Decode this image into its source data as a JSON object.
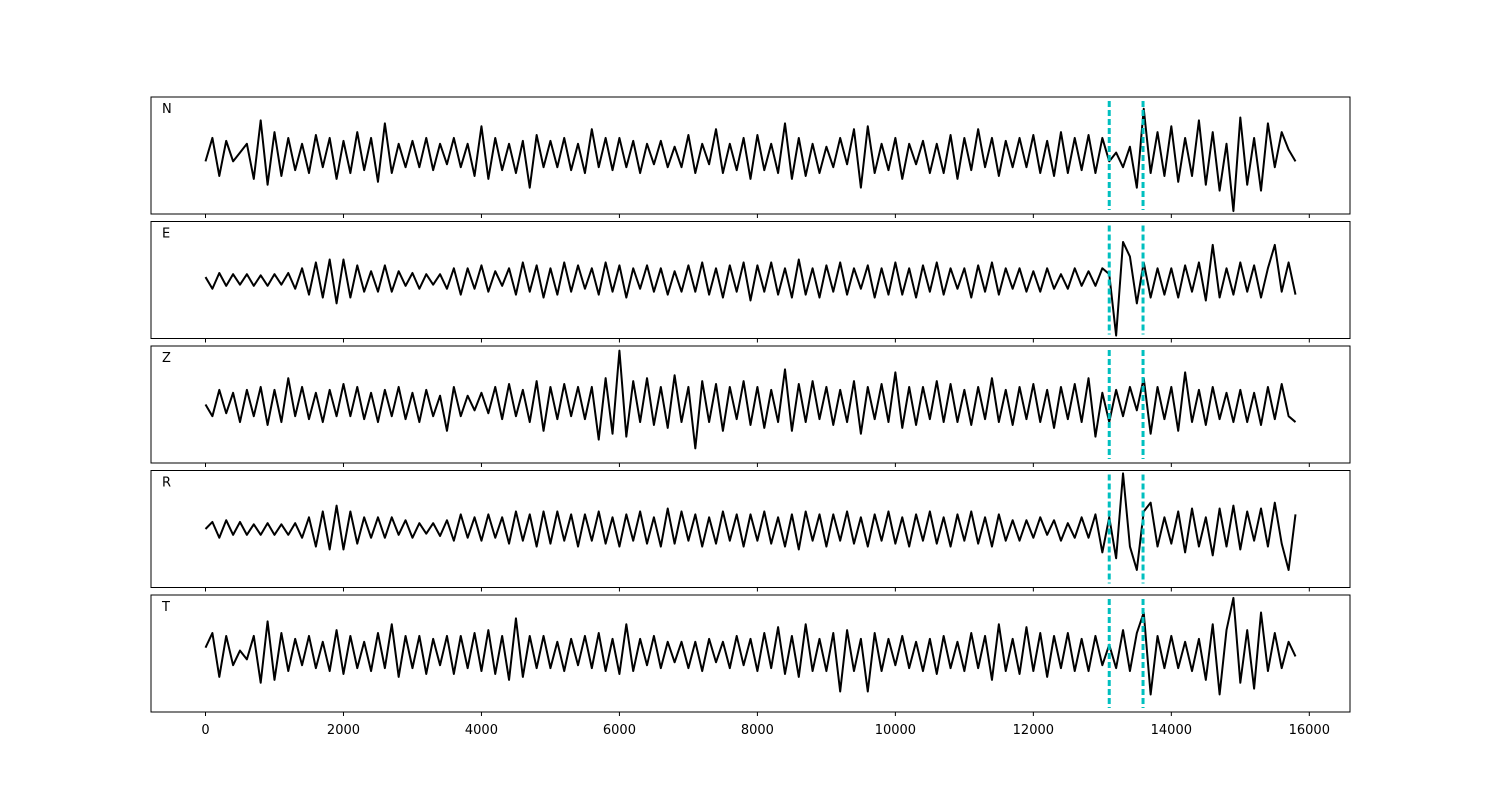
{
  "chart_data": {
    "type": "line",
    "subplots": true,
    "color": "#000000",
    "xlim": [
      -790,
      16590
    ],
    "xticks": [
      0,
      2000,
      4000,
      6000,
      8000,
      10000,
      12000,
      14000,
      16000
    ],
    "ylim": [
      -1,
      1
    ],
    "vlines": [
      13100,
      13590
    ],
    "vline_color": "#00bfbf",
    "x": [
      0,
      100,
      200,
      300,
      400,
      500,
      600,
      700,
      800,
      900,
      1000,
      1100,
      1200,
      1300,
      1400,
      1500,
      1600,
      1700,
      1800,
      1900,
      2000,
      2100,
      2200,
      2300,
      2400,
      2500,
      2600,
      2700,
      2800,
      2900,
      3000,
      3100,
      3200,
      3300,
      3400,
      3500,
      3600,
      3700,
      3800,
      3900,
      4000,
      4100,
      4200,
      4300,
      4400,
      4500,
      4600,
      4700,
      4800,
      4900,
      5000,
      5100,
      5200,
      5300,
      5400,
      5500,
      5600,
      5700,
      5800,
      5900,
      6000,
      6100,
      6200,
      6300,
      6400,
      6500,
      6600,
      6700,
      6800,
      6900,
      7000,
      7100,
      7200,
      7300,
      7400,
      7500,
      7600,
      7700,
      7800,
      7900,
      8000,
      8100,
      8200,
      8300,
      8400,
      8500,
      8600,
      8700,
      8800,
      8900,
      9000,
      9100,
      9200,
      9300,
      9400,
      9500,
      9600,
      9700,
      9800,
      9900,
      10000,
      10100,
      10200,
      10300,
      10400,
      10500,
      10600,
      10700,
      10800,
      10900,
      11000,
      11100,
      11200,
      11300,
      11400,
      11500,
      11600,
      11700,
      11800,
      11900,
      12000,
      12100,
      12200,
      12300,
      12400,
      12500,
      12600,
      12700,
      12800,
      12900,
      13000,
      13100,
      13200,
      13300,
      13400,
      13500,
      13600,
      13700,
      13800,
      13900,
      14000,
      14100,
      14200,
      14300,
      14400,
      14500,
      14600,
      14700,
      14800,
      14900,
      15000,
      15100,
      15200,
      15300,
      15400,
      15500,
      15600,
      15700,
      15800
    ],
    "series": [
      {
        "name": "N",
        "values": [
          -0.1,
          0.3,
          -0.35,
          0.25,
          -0.1,
          0.05,
          0.2,
          -0.4,
          0.6,
          -0.5,
          0.4,
          -0.35,
          0.3,
          -0.25,
          0.2,
          -0.3,
          0.35,
          -0.2,
          0.3,
          -0.4,
          0.25,
          -0.3,
          0.4,
          -0.25,
          0.3,
          -0.45,
          0.55,
          -0.3,
          0.2,
          -0.2,
          0.25,
          -0.2,
          0.3,
          -0.25,
          0.2,
          -0.15,
          0.3,
          -0.2,
          0.2,
          -0.35,
          0.5,
          -0.4,
          0.3,
          -0.25,
          0.2,
          -0.3,
          0.25,
          -0.55,
          0.35,
          -0.2,
          0.25,
          -0.2,
          0.3,
          -0.25,
          0.2,
          -0.3,
          0.45,
          -0.2,
          0.3,
          -0.25,
          0.3,
          -0.2,
          0.25,
          -0.3,
          0.2,
          -0.15,
          0.25,
          -0.2,
          0.15,
          -0.2,
          0.35,
          -0.3,
          0.2,
          -0.15,
          0.45,
          -0.3,
          0.2,
          -0.25,
          0.3,
          -0.4,
          0.35,
          -0.25,
          0.2,
          -0.3,
          0.55,
          -0.4,
          0.3,
          -0.35,
          0.2,
          -0.3,
          0.15,
          -0.2,
          0.3,
          -0.15,
          0.45,
          -0.55,
          0.5,
          -0.3,
          0.2,
          -0.25,
          0.3,
          -0.4,
          0.2,
          -0.15,
          0.25,
          -0.3,
          0.2,
          -0.3,
          0.35,
          -0.4,
          0.3,
          -0.25,
          0.45,
          -0.2,
          0.3,
          -0.35,
          0.25,
          -0.2,
          0.3,
          -0.2,
          0.35,
          -0.3,
          0.25,
          -0.35,
          0.4,
          -0.3,
          0.3,
          -0.25,
          0.35,
          -0.3,
          0.3,
          -0.1,
          0.05,
          -0.2,
          0.15,
          -0.55,
          0.8,
          -0.3,
          0.4,
          -0.35,
          0.5,
          -0.45,
          0.3,
          -0.35,
          0.6,
          -0.5,
          0.4,
          -0.6,
          0.2,
          -0.95,
          0.65,
          -0.5,
          0.3,
          -0.6,
          0.55,
          -0.2,
          0.4,
          0.1,
          -0.1
        ]
      },
      {
        "name": "E",
        "values": [
          0.05,
          -0.15,
          0.12,
          -0.1,
          0.1,
          -0.08,
          0.1,
          -0.1,
          0.08,
          -0.1,
          0.1,
          -0.08,
          0.12,
          -0.15,
          0.2,
          -0.25,
          0.3,
          -0.3,
          0.35,
          -0.4,
          0.35,
          -0.3,
          0.25,
          -0.2,
          0.15,
          -0.2,
          0.25,
          -0.2,
          0.15,
          -0.1,
          0.12,
          -0.15,
          0.1,
          -0.08,
          0.1,
          -0.15,
          0.2,
          -0.25,
          0.2,
          -0.15,
          0.25,
          -0.2,
          0.15,
          -0.1,
          0.2,
          -0.25,
          0.3,
          -0.2,
          0.25,
          -0.3,
          0.2,
          -0.25,
          0.3,
          -0.2,
          0.25,
          -0.15,
          0.2,
          -0.25,
          0.3,
          -0.2,
          0.25,
          -0.3,
          0.2,
          -0.15,
          0.25,
          -0.2,
          0.2,
          -0.25,
          0.15,
          -0.2,
          0.25,
          -0.2,
          0.3,
          -0.25,
          0.2,
          -0.3,
          0.25,
          -0.2,
          0.3,
          -0.35,
          0.25,
          -0.2,
          0.3,
          -0.25,
          0.2,
          -0.3,
          0.35,
          -0.25,
          0.2,
          -0.3,
          0.25,
          -0.2,
          0.3,
          -0.25,
          0.2,
          -0.15,
          0.25,
          -0.3,
          0.2,
          -0.25,
          0.3,
          -0.25,
          0.2,
          -0.3,
          0.25,
          -0.2,
          0.3,
          -0.25,
          0.2,
          -0.15,
          0.2,
          -0.3,
          0.25,
          -0.2,
          0.3,
          -0.25,
          0.2,
          -0.15,
          0.2,
          -0.2,
          0.15,
          -0.2,
          0.2,
          -0.15,
          0.1,
          -0.15,
          0.2,
          -0.1,
          0.15,
          -0.1,
          0.2,
          0.1,
          -0.95,
          0.65,
          0.4,
          -0.4,
          0.3,
          -0.3,
          0.2,
          -0.25,
          0.2,
          -0.3,
          0.25,
          -0.2,
          0.3,
          -0.35,
          0.6,
          -0.3,
          0.2,
          -0.25,
          0.3,
          -0.2,
          0.25,
          -0.3,
          0.2,
          0.6,
          -0.2,
          0.3,
          -0.25
        ]
      },
      {
        "name": "Z",
        "values": [
          0.0,
          -0.2,
          0.25,
          -0.15,
          0.2,
          -0.3,
          0.25,
          -0.2,
          0.3,
          -0.35,
          0.25,
          -0.3,
          0.45,
          -0.2,
          0.3,
          -0.25,
          0.2,
          -0.3,
          0.25,
          -0.2,
          0.35,
          -0.2,
          0.3,
          -0.25,
          0.2,
          -0.3,
          0.25,
          -0.2,
          0.3,
          -0.25,
          0.2,
          -0.3,
          0.25,
          -0.2,
          0.15,
          -0.45,
          0.3,
          -0.2,
          0.15,
          -0.1,
          0.2,
          -0.15,
          0.3,
          -0.25,
          0.35,
          -0.2,
          0.25,
          -0.3,
          0.4,
          -0.45,
          0.3,
          -0.25,
          0.35,
          -0.2,
          0.3,
          -0.25,
          0.3,
          -0.6,
          0.45,
          -0.5,
          0.92,
          -0.55,
          0.4,
          -0.3,
          0.45,
          -0.35,
          0.3,
          -0.4,
          0.5,
          -0.3,
          0.3,
          -0.75,
          0.4,
          -0.3,
          0.35,
          -0.45,
          0.3,
          -0.25,
          0.4,
          -0.35,
          0.3,
          -0.4,
          0.25,
          -0.3,
          0.6,
          -0.45,
          0.35,
          -0.3,
          0.4,
          -0.25,
          0.3,
          -0.35,
          0.25,
          -0.3,
          0.4,
          -0.5,
          0.3,
          -0.25,
          0.35,
          -0.3,
          0.55,
          -0.4,
          0.3,
          -0.35,
          0.3,
          -0.25,
          0.4,
          -0.3,
          0.35,
          -0.3,
          0.25,
          -0.35,
          0.3,
          -0.25,
          0.45,
          -0.3,
          0.25,
          -0.35,
          0.3,
          -0.25,
          0.35,
          -0.3,
          0.25,
          -0.4,
          0.3,
          -0.25,
          0.35,
          -0.3,
          0.45,
          -0.55,
          0.2,
          -0.3,
          0.25,
          -0.2,
          0.3,
          -0.1,
          0.45,
          -0.5,
          0.3,
          -0.25,
          0.3,
          -0.45,
          0.55,
          -0.3,
          0.25,
          -0.35,
          0.3,
          -0.25,
          0.2,
          -0.3,
          0.25,
          -0.3,
          0.2,
          -0.35,
          0.3,
          -0.25,
          0.35,
          -0.2,
          -0.3
        ]
      },
      {
        "name": "R",
        "values": [
          0.0,
          0.12,
          -0.15,
          0.15,
          -0.1,
          0.12,
          -0.1,
          0.08,
          -0.1,
          0.1,
          -0.1,
          0.08,
          -0.1,
          0.1,
          -0.15,
          0.2,
          -0.3,
          0.3,
          -0.35,
          0.4,
          -0.35,
          0.3,
          -0.25,
          0.2,
          -0.15,
          0.2,
          -0.15,
          0.2,
          -0.1,
          0.15,
          -0.15,
          0.1,
          -0.08,
          0.1,
          -0.12,
          0.15,
          -0.2,
          0.25,
          -0.15,
          0.2,
          -0.2,
          0.25,
          -0.15,
          0.2,
          -0.25,
          0.3,
          -0.2,
          0.25,
          -0.3,
          0.3,
          -0.25,
          0.3,
          -0.2,
          0.25,
          -0.3,
          0.25,
          -0.2,
          0.3,
          -0.25,
          0.2,
          -0.3,
          0.25,
          -0.2,
          0.3,
          -0.25,
          0.2,
          -0.3,
          0.35,
          -0.25,
          0.3,
          -0.2,
          0.25,
          -0.3,
          0.2,
          -0.25,
          0.3,
          -0.2,
          0.25,
          -0.3,
          0.25,
          -0.2,
          0.3,
          -0.25,
          0.2,
          -0.3,
          0.25,
          -0.35,
          0.3,
          -0.2,
          0.25,
          -0.3,
          0.25,
          -0.2,
          0.3,
          -0.25,
          0.2,
          -0.3,
          0.25,
          -0.2,
          0.3,
          -0.25,
          0.2,
          -0.3,
          0.25,
          -0.2,
          0.3,
          -0.25,
          0.2,
          -0.3,
          0.25,
          -0.2,
          0.3,
          -0.25,
          0.2,
          -0.3,
          0.25,
          -0.2,
          0.15,
          -0.2,
          0.15,
          -0.15,
          0.2,
          -0.1,
          0.15,
          -0.2,
          0.1,
          -0.15,
          0.2,
          -0.15,
          0.25,
          -0.4,
          0.2,
          -0.5,
          0.95,
          -0.3,
          -0.7,
          0.3,
          0.45,
          -0.3,
          0.2,
          -0.25,
          0.3,
          -0.4,
          0.35,
          -0.3,
          0.2,
          -0.45,
          0.35,
          -0.3,
          0.4,
          -0.35,
          0.3,
          -0.2,
          0.35,
          -0.3,
          0.45,
          -0.25,
          -0.7,
          0.25
        ]
      },
      {
        "name": "T",
        "values": [
          0.1,
          0.35,
          -0.4,
          0.3,
          -0.2,
          0.05,
          -0.1,
          0.3,
          -0.5,
          0.55,
          -0.45,
          0.35,
          -0.3,
          0.25,
          -0.2,
          0.3,
          -0.25,
          0.2,
          -0.3,
          0.4,
          -0.35,
          0.3,
          -0.25,
          0.2,
          -0.3,
          0.35,
          -0.25,
          0.5,
          -0.4,
          0.3,
          -0.25,
          0.3,
          -0.35,
          0.25,
          -0.2,
          0.3,
          -0.35,
          0.3,
          -0.25,
          0.35,
          -0.3,
          0.4,
          -0.35,
          0.3,
          -0.45,
          0.6,
          -0.4,
          0.3,
          -0.25,
          0.3,
          -0.25,
          0.2,
          -0.3,
          0.25,
          -0.2,
          0.3,
          -0.25,
          0.35,
          -0.3,
          0.25,
          -0.35,
          0.5,
          -0.3,
          0.25,
          -0.2,
          0.3,
          -0.25,
          0.2,
          -0.15,
          0.2,
          -0.25,
          0.2,
          -0.3,
          0.25,
          -0.15,
          0.2,
          -0.25,
          0.3,
          -0.2,
          0.25,
          -0.3,
          0.35,
          -0.25,
          0.45,
          -0.35,
          0.3,
          -0.4,
          0.5,
          -0.3,
          0.25,
          -0.3,
          0.35,
          -0.65,
          0.4,
          -0.3,
          0.25,
          -0.65,
          0.35,
          -0.3,
          0.25,
          -0.2,
          0.3,
          -0.25,
          0.2,
          -0.3,
          0.25,
          -0.35,
          0.3,
          -0.25,
          0.2,
          -0.3,
          0.35,
          -0.25,
          0.3,
          -0.45,
          0.5,
          -0.3,
          0.25,
          -0.35,
          0.45,
          -0.3,
          0.35,
          -0.4,
          0.3,
          -0.25,
          0.35,
          -0.3,
          0.25,
          -0.3,
          0.3,
          -0.2,
          0.15,
          -0.25,
          0.4,
          -0.3,
          0.35,
          0.7,
          -0.7,
          0.3,
          -0.25,
          0.3,
          -0.25,
          0.2,
          -0.3,
          0.25,
          -0.45,
          0.5,
          -0.7,
          0.4,
          0.95,
          -0.5,
          0.4,
          -0.6,
          0.7,
          -0.3,
          0.35,
          -0.25,
          0.2,
          -0.05
        ]
      }
    ]
  }
}
